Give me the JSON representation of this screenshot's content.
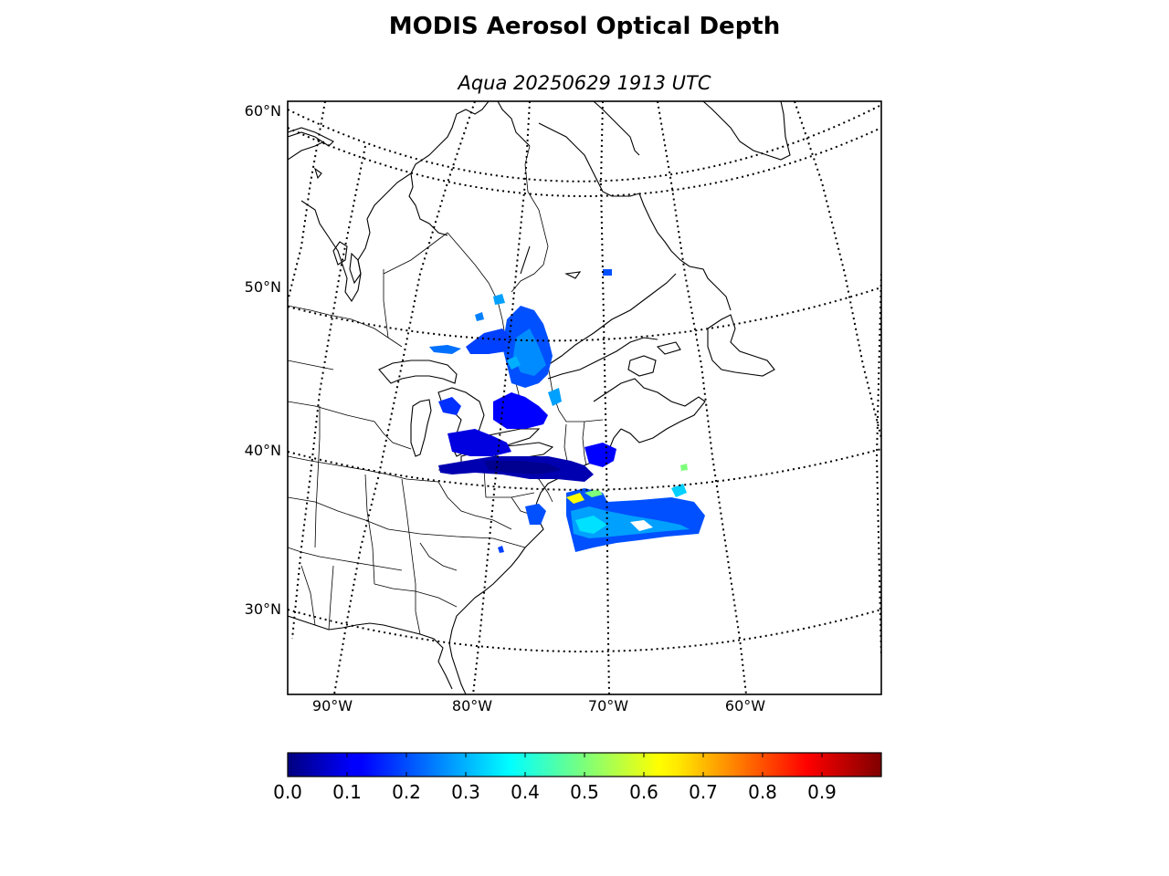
{
  "title": "MODIS Aerosol Optical Depth",
  "subtitle": "Aqua 20250629 1913 UTC",
  "map": {
    "lat_labels": [
      "60°N",
      "50°N",
      "40°N",
      "30°N"
    ],
    "lon_labels": [
      "90°W",
      "80°W",
      "70°W",
      "60°W"
    ]
  },
  "colorbar": {
    "colormap": "jet",
    "range": [
      0.0,
      1.0
    ],
    "tick_labels": [
      "0.0",
      "0.1",
      "0.2",
      "0.3",
      "0.4",
      "0.5",
      "0.6",
      "0.7",
      "0.8",
      "0.9"
    ]
  },
  "colors": {
    "low": "#00007f",
    "blue": "#0000ff",
    "mid": "#00a5ff",
    "cyan": "#00ffff",
    "green": "#7dff7a",
    "yellow": "#ffff00",
    "red": "#ff0000",
    "high": "#7f0000"
  }
}
